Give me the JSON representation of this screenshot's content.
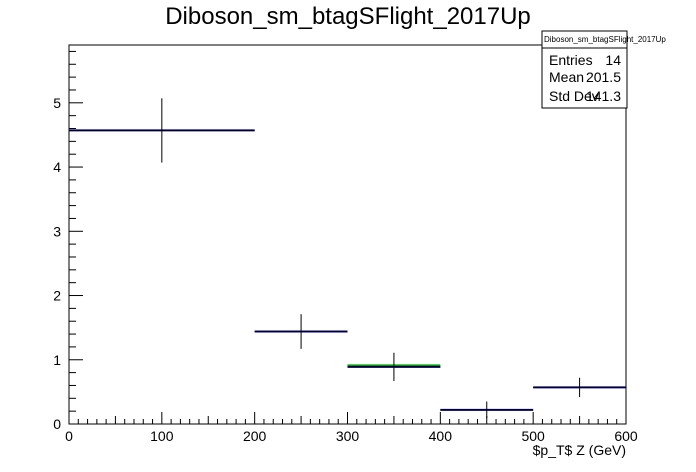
{
  "chart_data": {
    "type": "histogram",
    "title": "Diboson_sm_btagSFlight_2017Up",
    "xlabel": "$p_T$ Z (GeV)",
    "ylabel": "",
    "xlim": [
      0,
      600
    ],
    "ylim": [
      0,
      5.9
    ],
    "x_ticks": [
      "0",
      "100",
      "200",
      "300",
      "400",
      "500",
      "600"
    ],
    "y_ticks": [
      "0",
      "1",
      "2",
      "3",
      "4",
      "5"
    ],
    "bins": [
      {
        "low": 0,
        "high": 200,
        "value": 4.57,
        "err": 0.5
      },
      {
        "low": 200,
        "high": 300,
        "value": 1.44,
        "err": 0.27
      },
      {
        "low": 300,
        "high": 400,
        "value": 0.89,
        "err": 0.22
      },
      {
        "low": 400,
        "high": 500,
        "value": 0.22,
        "err": 0.13
      },
      {
        "low": 500,
        "high": 600,
        "value": 0.57,
        "err": 0.15
      }
    ],
    "colors": {
      "histogram": "#000080",
      "highlight": "#00aa00",
      "error": "#000000"
    },
    "stats": {
      "name": "Diboson_sm_btagSFlight_2017Up",
      "rows": [
        {
          "label": "Entries",
          "value": "14"
        },
        {
          "label": "Mean",
          "value": "201.5"
        },
        {
          "label": "Std Dev",
          "value": "141.3"
        }
      ]
    }
  }
}
